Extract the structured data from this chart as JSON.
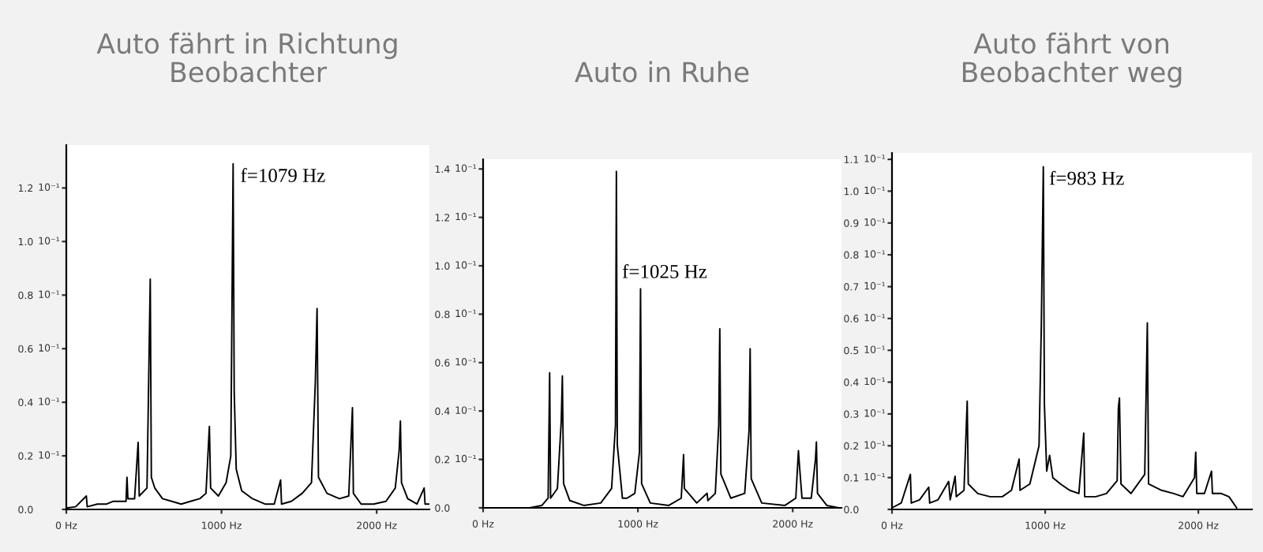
{
  "chart_data": [
    {
      "type": "line",
      "title": "Auto fährt in Richtung\nBeobachter",
      "ylabel": "10⁻¹",
      "annotations": [
        {
          "text": "f=1079 Hz",
          "x": 1079,
          "y": 1.29
        }
      ],
      "xlim": [
        0,
        2340
      ],
      "xticks": [
        {
          "value": 0,
          "label": "0 Hz"
        },
        {
          "value": 1000,
          "label": "1000 Hz"
        },
        {
          "value": 2000,
          "label": "2000 Hz"
        }
      ],
      "ylim": [
        0,
        1.36
      ],
      "yticks": [
        {
          "value": 0,
          "label": "0.0"
        },
        {
          "value": 0.2,
          "label": "0.2"
        },
        {
          "value": 0.4,
          "label": "0.4"
        },
        {
          "value": 0.6,
          "label": "0.6"
        },
        {
          "value": 0.8,
          "label": "0.8"
        },
        {
          "value": 1.0,
          "label": "1.0"
        },
        {
          "value": 1.2,
          "label": "1.2"
        }
      ],
      "grid": false,
      "marker": "none",
      "line_style": "solid",
      "series": [
        {
          "color": "#000000",
          "x": [
            0,
            60,
            129,
            135,
            200,
            260,
            300,
            385,
            391,
            397,
            440,
            463,
            470,
            520,
            541,
            548,
            570,
            620,
            680,
            740,
            800,
            860,
            900,
            922,
            930,
            980,
            1030,
            1060,
            1075,
            1082,
            1095,
            1130,
            1200,
            1280,
            1340,
            1381,
            1387,
            1450,
            1520,
            1580,
            1605,
            1616,
            1625,
            1680,
            1760,
            1820,
            1844,
            1850,
            1900,
            1980,
            2060,
            2120,
            2145,
            2153,
            2160,
            2200,
            2260,
            2306,
            2312,
            2340
          ],
          "values": [
            0.005,
            0.01,
            0.05,
            0.01,
            0.02,
            0.02,
            0.03,
            0.03,
            0.12,
            0.04,
            0.04,
            0.25,
            0.05,
            0.08,
            0.86,
            0.12,
            0.08,
            0.04,
            0.03,
            0.02,
            0.03,
            0.04,
            0.06,
            0.31,
            0.08,
            0.05,
            0.1,
            0.2,
            1.29,
            0.44,
            0.15,
            0.07,
            0.04,
            0.02,
            0.02,
            0.11,
            0.02,
            0.03,
            0.06,
            0.1,
            0.48,
            0.75,
            0.12,
            0.06,
            0.04,
            0.05,
            0.38,
            0.06,
            0.02,
            0.02,
            0.03,
            0.08,
            0.22,
            0.33,
            0.1,
            0.04,
            0.02,
            0.08,
            0.02,
            0.02
          ]
        }
      ]
    },
    {
      "type": "line",
      "title": "Auto in Ruhe",
      "ylabel": "10⁻¹",
      "annotations": [
        {
          "text": "f=1025 Hz",
          "x": 1025,
          "y": 0.905
        }
      ],
      "xlim": [
        0,
        2315
      ],
      "xticks": [
        {
          "value": 0,
          "label": "0 Hz"
        },
        {
          "value": 1000,
          "label": "1000 Hz"
        },
        {
          "value": 2000,
          "label": "2000 Hz"
        }
      ],
      "ylim": [
        0,
        1.44
      ],
      "yticks": [
        {
          "value": 0,
          "label": "0.0"
        },
        {
          "value": 0.2,
          "label": "0.2"
        },
        {
          "value": 0.4,
          "label": "0.4"
        },
        {
          "value": 0.6,
          "label": "0.6"
        },
        {
          "value": 0.8,
          "label": "0.8"
        },
        {
          "value": 1.0,
          "label": "1.0"
        },
        {
          "value": 1.2,
          "label": "1.2"
        },
        {
          "value": 1.4,
          "label": "1.4"
        }
      ],
      "grid": false,
      "marker": "none",
      "line_style": "solid",
      "series": [
        {
          "color": "#000000",
          "x": [
            0,
            300,
            380,
            420,
            430,
            436,
            480,
            505,
            512,
            520,
            560,
            650,
            760,
            830,
            855,
            861,
            867,
            900,
            930,
            980,
            1010,
            1017,
            1024,
            1080,
            1200,
            1280,
            1295,
            1300,
            1380,
            1447,
            1452,
            1500,
            1522,
            1529,
            1536,
            1600,
            1690,
            1718,
            1725,
            1732,
            1800,
            1950,
            2020,
            2037,
            2043,
            2060,
            2120,
            2147,
            2153,
            2160,
            2220,
            2300
          ],
          "values": [
            0,
            0,
            0.01,
            0.04,
            0.558,
            0.04,
            0.08,
            0.36,
            0.545,
            0.1,
            0.03,
            0.01,
            0.02,
            0.08,
            0.34,
            1.39,
            0.26,
            0.04,
            0.04,
            0.06,
            0.23,
            0.905,
            0.1,
            0.02,
            0.01,
            0.04,
            0.22,
            0.08,
            0.02,
            0.06,
            0.03,
            0.06,
            0.34,
            0.74,
            0.14,
            0.04,
            0.06,
            0.32,
            0.657,
            0.12,
            0.02,
            0.01,
            0.04,
            0.236,
            0.18,
            0.04,
            0.04,
            0.2,
            0.272,
            0.06,
            0.01,
            0
          ]
        }
      ]
    },
    {
      "type": "line",
      "title": "Auto fährt von\nBeobachter weg",
      "ylabel": "10⁻¹",
      "annotations": [
        {
          "text": "f=983 Hz",
          "x": 983,
          "y": 1.077
        }
      ],
      "xlim": [
        0,
        2350
      ],
      "xticks": [
        {
          "value": 0,
          "label": "0 Hz"
        },
        {
          "value": 1000,
          "label": "1000 Hz"
        },
        {
          "value": 2000,
          "label": "2000 Hz"
        }
      ],
      "ylim": [
        0,
        1.12
      ],
      "yticks": [
        {
          "value": 0,
          "label": "0.0"
        },
        {
          "value": 0.1,
          "label": "0.1"
        },
        {
          "value": 0.2,
          "label": "0.2"
        },
        {
          "value": 0.3,
          "label": "0.3"
        },
        {
          "value": 0.4,
          "label": "0.4"
        },
        {
          "value": 0.5,
          "label": "0.5"
        },
        {
          "value": 0.6,
          "label": "0.6"
        },
        {
          "value": 0.7,
          "label": "0.7"
        },
        {
          "value": 0.8,
          "label": "0.8"
        },
        {
          "value": 0.9,
          "label": "0.9"
        },
        {
          "value": 1.0,
          "label": "1.0"
        },
        {
          "value": 1.1,
          "label": "1.1"
        }
      ],
      "grid": false,
      "marker": "none",
      "line_style": "solid",
      "series": [
        {
          "color": "#000000",
          "x": [
            0,
            60,
            120,
            126,
            180,
            240,
            246,
            300,
            370,
            380,
            412,
            420,
            470,
            491,
            498,
            560,
            640,
            720,
            780,
            830,
            836,
            900,
            960,
            975,
            988,
            995,
            1010,
            1029,
            1050,
            1100,
            1160,
            1220,
            1252,
            1258,
            1330,
            1400,
            1470,
            1478,
            1485,
            1495,
            1560,
            1650,
            1667,
            1675,
            1760,
            1840,
            1900,
            1975,
            1983,
            1990,
            2040,
            2086,
            2092,
            2150,
            2200,
            2250
          ],
          "values": [
            0.005,
            0.02,
            0.11,
            0.02,
            0.03,
            0.07,
            0.02,
            0.03,
            0.088,
            0.03,
            0.104,
            0.04,
            0.06,
            0.34,
            0.08,
            0.05,
            0.04,
            0.04,
            0.06,
            0.158,
            0.06,
            0.08,
            0.2,
            0.58,
            1.077,
            0.33,
            0.12,
            0.17,
            0.1,
            0.08,
            0.06,
            0.05,
            0.24,
            0.04,
            0.04,
            0.05,
            0.09,
            0.32,
            0.35,
            0.08,
            0.05,
            0.11,
            0.586,
            0.08,
            0.06,
            0.05,
            0.04,
            0.1,
            0.18,
            0.05,
            0.05,
            0.12,
            0.05,
            0.05,
            0.04,
            0.005
          ]
        }
      ]
    }
  ]
}
